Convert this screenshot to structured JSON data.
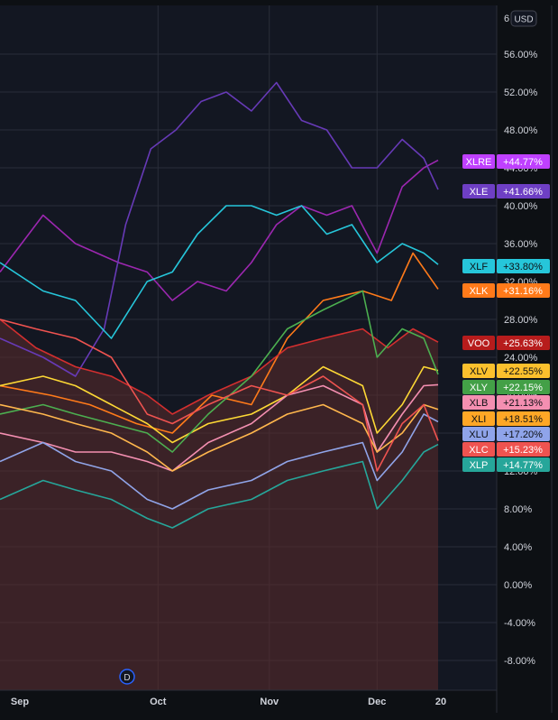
{
  "currency_badge": "USD",
  "top_tick_partial": "6",
  "event_marker": "D",
  "colors": {
    "background": "#131722",
    "grid": "#2a2e39",
    "axis_text": "#d1d4dc",
    "voo_area": "#5c2b2b"
  },
  "chart_data": {
    "type": "line",
    "title": "",
    "xlabel": "",
    "ylabel": "",
    "x_ticks": [
      "Sep",
      "Oct",
      "Nov",
      "Dec",
      "20"
    ],
    "y_unit": "%",
    "ylim": [
      -11,
      61
    ],
    "y_ticks": [
      "56.00%",
      "52.00%",
      "48.00%",
      "44.00%",
      "40.00%",
      "36.00%",
      "32.00%",
      "28.00%",
      "24.00%",
      "20.00%",
      "16.00%",
      "12.00%",
      "8.00%",
      "4.00%",
      "0.00%",
      "-4.00%",
      "-8.00%"
    ],
    "y_tick_values": [
      56,
      52,
      48,
      44,
      40,
      36,
      32,
      28,
      24,
      20,
      16,
      12,
      8,
      4,
      0,
      -4,
      -8
    ],
    "x_start": "2023-08-18",
    "x_end": "2023-12-18",
    "grid": true,
    "legend": "right-axis-labels",
    "series": [
      {
        "name": "XLRE",
        "last_label": "+44.77%",
        "color": "#9c27b0",
        "label_color": "#bf40ff",
        "label_text": "#ffffff",
        "points": [
          [
            "2023-08-18",
            33
          ],
          [
            "2023-08-30",
            39
          ],
          [
            "2023-09-08",
            36
          ],
          [
            "2023-09-20",
            34
          ],
          [
            "2023-09-28",
            33
          ],
          [
            "2023-10-05",
            30
          ],
          [
            "2023-10-12",
            32
          ],
          [
            "2023-10-20",
            31
          ],
          [
            "2023-10-27",
            34
          ],
          [
            "2023-11-03",
            38
          ],
          [
            "2023-11-10",
            40
          ],
          [
            "2023-11-17",
            39
          ],
          [
            "2023-11-24",
            40
          ],
          [
            "2023-12-01",
            35
          ],
          [
            "2023-12-08",
            42
          ],
          [
            "2023-12-14",
            44
          ],
          [
            "2023-12-18",
            44.8
          ]
        ]
      },
      {
        "name": "XLE",
        "last_label": "+41.66%",
        "color": "#673ab7",
        "label_color": "#6e3fc4",
        "label_text": "#ffffff",
        "points": [
          [
            "2023-08-18",
            26
          ],
          [
            "2023-08-30",
            24
          ],
          [
            "2023-09-08",
            22
          ],
          [
            "2023-09-16",
            27
          ],
          [
            "2023-09-22",
            38
          ],
          [
            "2023-09-29",
            46
          ],
          [
            "2023-10-06",
            48
          ],
          [
            "2023-10-13",
            51
          ],
          [
            "2023-10-20",
            52
          ],
          [
            "2023-10-27",
            50
          ],
          [
            "2023-11-03",
            53
          ],
          [
            "2023-11-10",
            49
          ],
          [
            "2023-11-17",
            48
          ],
          [
            "2023-11-24",
            44
          ],
          [
            "2023-12-01",
            44
          ],
          [
            "2023-12-08",
            47
          ],
          [
            "2023-12-14",
            45
          ],
          [
            "2023-12-18",
            41.7
          ]
        ]
      },
      {
        "name": "XLF",
        "last_label": "+33.80%",
        "color": "#26c6da",
        "label_color": "#26c6da",
        "label_text": "#0d1014",
        "points": [
          [
            "2023-08-18",
            34
          ],
          [
            "2023-08-30",
            31
          ],
          [
            "2023-09-08",
            30
          ],
          [
            "2023-09-18",
            26
          ],
          [
            "2023-09-28",
            32
          ],
          [
            "2023-10-05",
            33
          ],
          [
            "2023-10-12",
            37
          ],
          [
            "2023-10-20",
            40
          ],
          [
            "2023-10-27",
            40
          ],
          [
            "2023-11-03",
            39
          ],
          [
            "2023-11-10",
            40
          ],
          [
            "2023-11-17",
            37
          ],
          [
            "2023-11-24",
            38
          ],
          [
            "2023-12-01",
            34
          ],
          [
            "2023-12-08",
            36
          ],
          [
            "2023-12-14",
            35
          ],
          [
            "2023-12-18",
            33.8
          ]
        ]
      },
      {
        "name": "XLK",
        "last_label": "+31.16%",
        "color": "#ff7a1a",
        "label_color": "#ff7a1a",
        "label_text": "#ffffff",
        "points": [
          [
            "2023-08-18",
            21
          ],
          [
            "2023-09-01",
            20
          ],
          [
            "2023-09-12",
            19
          ],
          [
            "2023-09-25",
            17
          ],
          [
            "2023-10-05",
            16
          ],
          [
            "2023-10-16",
            20
          ],
          [
            "2023-10-27",
            19
          ],
          [
            "2023-11-06",
            26
          ],
          [
            "2023-11-16",
            30
          ],
          [
            "2023-11-27",
            31
          ],
          [
            "2023-12-05",
            30
          ],
          [
            "2023-12-11",
            35
          ],
          [
            "2023-12-18",
            31.2
          ]
        ]
      },
      {
        "name": "VOO",
        "last_label": "+25.63%",
        "color": "#d32f2f",
        "label_color": "#b71c1c",
        "label_text": "#ffffff",
        "area": true,
        "points": [
          [
            "2023-08-18",
            28
          ],
          [
            "2023-08-28",
            25
          ],
          [
            "2023-09-08",
            23
          ],
          [
            "2023-09-18",
            22
          ],
          [
            "2023-09-28",
            20
          ],
          [
            "2023-10-05",
            18
          ],
          [
            "2023-10-15",
            20
          ],
          [
            "2023-10-27",
            22
          ],
          [
            "2023-11-06",
            25
          ],
          [
            "2023-11-16",
            26
          ],
          [
            "2023-11-27",
            27
          ],
          [
            "2023-12-04",
            25
          ],
          [
            "2023-12-11",
            27
          ],
          [
            "2023-12-18",
            25.6
          ]
        ]
      },
      {
        "name": "XLV",
        "last_label": "+22.55%",
        "color": "#fdd835",
        "label_color": "#fbc02d",
        "label_text": "#0d1014",
        "points": [
          [
            "2023-08-18",
            21
          ],
          [
            "2023-08-30",
            22
          ],
          [
            "2023-09-08",
            21
          ],
          [
            "2023-09-18",
            19
          ],
          [
            "2023-09-28",
            17
          ],
          [
            "2023-10-05",
            15
          ],
          [
            "2023-10-15",
            17
          ],
          [
            "2023-10-27",
            18
          ],
          [
            "2023-11-06",
            20
          ],
          [
            "2023-11-16",
            23
          ],
          [
            "2023-11-27",
            21
          ],
          [
            "2023-12-01",
            16
          ],
          [
            "2023-12-08",
            19
          ],
          [
            "2023-12-14",
            23
          ],
          [
            "2023-12-18",
            22.6
          ]
        ]
      },
      {
        "name": "XLY",
        "last_label": "+22.15%",
        "color": "#4caf50",
        "label_color": "#43a047",
        "label_text": "#ffffff",
        "points": [
          [
            "2023-08-18",
            18
          ],
          [
            "2023-08-30",
            19
          ],
          [
            "2023-09-08",
            18
          ],
          [
            "2023-09-18",
            17
          ],
          [
            "2023-09-28",
            16
          ],
          [
            "2023-10-05",
            14
          ],
          [
            "2023-10-15",
            18
          ],
          [
            "2023-10-27",
            22
          ],
          [
            "2023-11-06",
            27
          ],
          [
            "2023-11-16",
            29
          ],
          [
            "2023-11-27",
            31
          ],
          [
            "2023-12-01",
            24
          ],
          [
            "2023-12-08",
            27
          ],
          [
            "2023-12-14",
            26
          ],
          [
            "2023-12-18",
            22.2
          ]
        ]
      },
      {
        "name": "XLB",
        "last_label": "+21.13%",
        "color": "#f48fb1",
        "label_color": "#f48fb1",
        "label_text": "#0d1014",
        "points": [
          [
            "2023-08-18",
            16
          ],
          [
            "2023-08-30",
            15
          ],
          [
            "2023-09-08",
            14
          ],
          [
            "2023-09-18",
            14
          ],
          [
            "2023-09-28",
            13
          ],
          [
            "2023-10-05",
            12
          ],
          [
            "2023-10-15",
            15
          ],
          [
            "2023-10-27",
            17
          ],
          [
            "2023-11-06",
            20
          ],
          [
            "2023-11-16",
            21
          ],
          [
            "2023-11-27",
            19
          ],
          [
            "2023-12-01",
            14
          ],
          [
            "2023-12-08",
            18
          ],
          [
            "2023-12-14",
            21
          ],
          [
            "2023-12-18",
            21.1
          ]
        ]
      },
      {
        "name": "XLI",
        "last_label": "+18.51%",
        "color": "#ffb74d",
        "label_color": "#ffa726",
        "label_text": "#0d1014",
        "points": [
          [
            "2023-08-18",
            19
          ],
          [
            "2023-08-30",
            18
          ],
          [
            "2023-09-08",
            17
          ],
          [
            "2023-09-18",
            16
          ],
          [
            "2023-09-28",
            14
          ],
          [
            "2023-10-05",
            12
          ],
          [
            "2023-10-15",
            14
          ],
          [
            "2023-10-27",
            16
          ],
          [
            "2023-11-06",
            18
          ],
          [
            "2023-11-16",
            19
          ],
          [
            "2023-11-27",
            17
          ],
          [
            "2023-12-01",
            14
          ],
          [
            "2023-12-08",
            16
          ],
          [
            "2023-12-14",
            19
          ],
          [
            "2023-12-18",
            18.5
          ]
        ]
      },
      {
        "name": "XLU",
        "last_label": "+17.20%",
        "color": "#90a4e8",
        "label_color": "#8fa4ea",
        "label_text": "#0d1014",
        "points": [
          [
            "2023-08-18",
            13
          ],
          [
            "2023-08-30",
            15
          ],
          [
            "2023-09-08",
            13
          ],
          [
            "2023-09-18",
            12
          ],
          [
            "2023-09-28",
            9
          ],
          [
            "2023-10-05",
            8
          ],
          [
            "2023-10-15",
            10
          ],
          [
            "2023-10-27",
            11
          ],
          [
            "2023-11-06",
            13
          ],
          [
            "2023-11-16",
            14
          ],
          [
            "2023-11-27",
            15
          ],
          [
            "2023-12-01",
            11
          ],
          [
            "2023-12-08",
            14
          ],
          [
            "2023-12-14",
            18
          ],
          [
            "2023-12-18",
            17.2
          ]
        ]
      },
      {
        "name": "XLC",
        "last_label": "+15.23%",
        "color": "#ef5350",
        "label_color": "#ef5350",
        "label_text": "#ffffff",
        "points": [
          [
            "2023-08-18",
            28
          ],
          [
            "2023-08-28",
            27
          ],
          [
            "2023-09-08",
            26
          ],
          [
            "2023-09-18",
            24
          ],
          [
            "2023-09-28",
            18
          ],
          [
            "2023-10-05",
            17
          ],
          [
            "2023-10-15",
            19
          ],
          [
            "2023-10-27",
            21
          ],
          [
            "2023-11-06",
            20
          ],
          [
            "2023-11-16",
            22
          ],
          [
            "2023-11-27",
            19
          ],
          [
            "2023-12-01",
            12
          ],
          [
            "2023-12-08",
            17
          ],
          [
            "2023-12-14",
            19
          ],
          [
            "2023-12-18",
            15.2
          ]
        ]
      },
      {
        "name": "XLP",
        "last_label": "+14.77%",
        "color": "#26a69a",
        "label_color": "#26a69a",
        "label_text": "#ffffff",
        "points": [
          [
            "2023-08-18",
            9
          ],
          [
            "2023-08-30",
            11
          ],
          [
            "2023-09-08",
            10
          ],
          [
            "2023-09-18",
            9
          ],
          [
            "2023-09-28",
            7
          ],
          [
            "2023-10-05",
            6
          ],
          [
            "2023-10-15",
            8
          ],
          [
            "2023-10-27",
            9
          ],
          [
            "2023-11-06",
            11
          ],
          [
            "2023-11-16",
            12
          ],
          [
            "2023-11-27",
            13
          ],
          [
            "2023-12-01",
            8
          ],
          [
            "2023-12-08",
            11
          ],
          [
            "2023-12-14",
            14
          ],
          [
            "2023-12-18",
            14.8
          ]
        ]
      }
    ]
  }
}
